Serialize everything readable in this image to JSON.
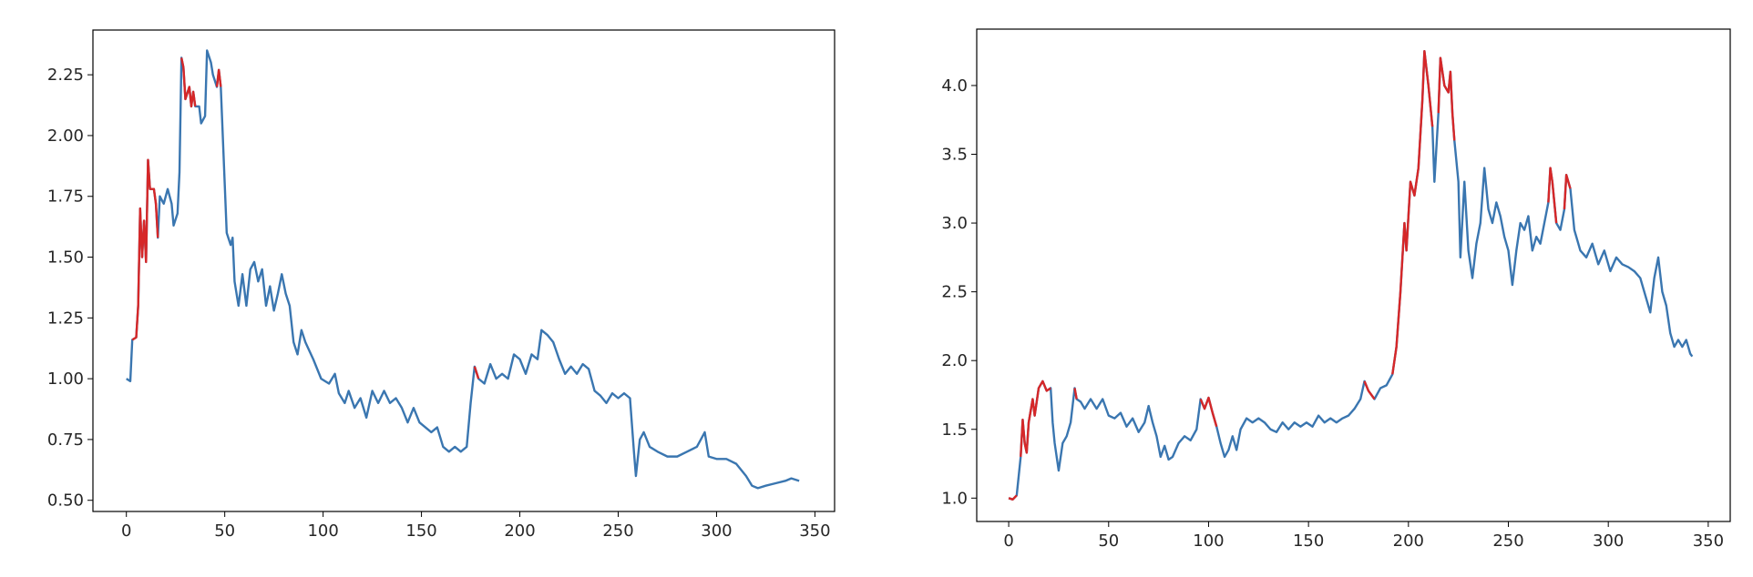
{
  "chart_data": [
    {
      "type": "line",
      "xlim": [
        -17,
        360
      ],
      "ylim": [
        0.454,
        2.434
      ],
      "xticks": [
        0,
        50,
        100,
        150,
        200,
        250,
        300,
        350
      ],
      "yticks": [
        {
          "value": 0.5,
          "label": "0.50"
        },
        {
          "value": 0.75,
          "label": "0.75"
        },
        {
          "value": 1.0,
          "label": "1.00"
        },
        {
          "value": 1.25,
          "label": "1.25"
        },
        {
          "value": 1.5,
          "label": "1.50"
        },
        {
          "value": 1.75,
          "label": "1.75"
        },
        {
          "value": 2.0,
          "label": "2.00"
        },
        {
          "value": 2.25,
          "label": "2.25"
        }
      ],
      "x": [
        0,
        2,
        3,
        5,
        6,
        7,
        8,
        9,
        10,
        11,
        12,
        14,
        15,
        16,
        17,
        19,
        21,
        23,
        24,
        26,
        27,
        28,
        29,
        30,
        32,
        33,
        34,
        35,
        37,
        38,
        40,
        41,
        43,
        44,
        46,
        47,
        48,
        50,
        51,
        53,
        54,
        55,
        57,
        59,
        61,
        63,
        65,
        67,
        69,
        71,
        73,
        75,
        77,
        79,
        81,
        83,
        85,
        87,
        89,
        91,
        95,
        99,
        103,
        106,
        108,
        111,
        113,
        116,
        119,
        122,
        125,
        128,
        131,
        134,
        137,
        140,
        143,
        146,
        149,
        152,
        155,
        158,
        161,
        164,
        167,
        170,
        173,
        175,
        177,
        179,
        182,
        185,
        188,
        191,
        194,
        197,
        200,
        203,
        206,
        209,
        211,
        214,
        217,
        220,
        223,
        226,
        229,
        232,
        235,
        238,
        241,
        244,
        247,
        250,
        253,
        256,
        258,
        259,
        261,
        263,
        266,
        270,
        275,
        280,
        285,
        290,
        294,
        296,
        300,
        305,
        310,
        315,
        318,
        321,
        325,
        330,
        335,
        338,
        342
      ],
      "series": [
        {
          "color": "#3a76b0",
          "values": [
            1.0,
            0.99,
            1.16,
            1.17,
            1.3,
            1.7,
            1.5,
            1.65,
            1.48,
            1.9,
            1.78,
            1.78,
            1.72,
            1.58,
            1.75,
            1.72,
            1.78,
            1.72,
            1.63,
            1.68,
            1.85,
            2.32,
            2.28,
            2.15,
            2.2,
            2.12,
            2.18,
            2.12,
            2.12,
            2.05,
            2.08,
            2.35,
            2.3,
            2.25,
            2.2,
            2.27,
            2.2,
            1.8,
            1.6,
            1.55,
            1.58,
            1.4,
            1.3,
            1.43,
            1.3,
            1.45,
            1.48,
            1.4,
            1.45,
            1.3,
            1.38,
            1.28,
            1.35,
            1.43,
            1.35,
            1.3,
            1.15,
            1.1,
            1.2,
            1.15,
            1.08,
            1.0,
            0.98,
            1.02,
            0.94,
            0.9,
            0.95,
            0.88,
            0.92,
            0.84,
            0.95,
            0.9,
            0.95,
            0.9,
            0.92,
            0.88,
            0.82,
            0.88,
            0.82,
            0.8,
            0.78,
            0.8,
            0.72,
            0.7,
            0.72,
            0.7,
            0.72,
            0.9,
            1.05,
            1.0,
            0.98,
            1.06,
            1.0,
            1.02,
            1.0,
            1.1,
            1.08,
            1.02,
            1.1,
            1.08,
            1.2,
            1.18,
            1.15,
            1.08,
            1.02,
            1.05,
            1.02,
            1.06,
            1.04,
            0.95,
            0.93,
            0.9,
            0.94,
            0.92,
            0.94,
            0.92,
            0.7,
            0.6,
            0.75,
            0.78,
            0.72,
            0.7,
            0.68,
            0.68,
            0.7,
            0.72,
            0.78,
            0.68,
            0.67,
            0.67,
            0.65,
            0.6,
            0.56,
            0.55,
            0.56,
            0.57,
            0.58,
            0.59,
            0.58
          ]
        },
        {
          "color": "#d62728",
          "x": [
            3,
            5,
            6,
            7,
            8,
            9,
            10,
            11,
            12,
            14,
            15,
            16,
            null,
            28,
            29,
            30,
            32,
            33,
            34,
            35,
            null,
            46,
            47,
            48,
            null,
            177,
            179
          ],
          "values": [
            1.16,
            1.17,
            1.3,
            1.7,
            1.5,
            1.65,
            1.48,
            1.9,
            1.78,
            1.78,
            1.72,
            1.58,
            null,
            2.32,
            2.28,
            2.15,
            2.2,
            2.12,
            2.18,
            2.12,
            null,
            2.2,
            2.27,
            2.2,
            null,
            1.05,
            1.0
          ]
        }
      ]
    },
    {
      "type": "line",
      "xlim": [
        -16,
        361
      ],
      "ylim": [
        0.83,
        4.41
      ],
      "xticks": [
        0,
        50,
        100,
        150,
        200,
        250,
        300,
        350
      ],
      "yticks": [
        {
          "value": 1.0,
          "label": "1.0"
        },
        {
          "value": 1.5,
          "label": "1.5"
        },
        {
          "value": 2.0,
          "label": "2.0"
        },
        {
          "value": 2.5,
          "label": "2.5"
        },
        {
          "value": 3.0,
          "label": "3.0"
        },
        {
          "value": 3.5,
          "label": "3.5"
        },
        {
          "value": 4.0,
          "label": "4.0"
        }
      ],
      "x": [
        0,
        2,
        4,
        6,
        7,
        8,
        9,
        10,
        12,
        13,
        15,
        17,
        19,
        21,
        22,
        23,
        25,
        27,
        29,
        31,
        33,
        34,
        36,
        38,
        41,
        44,
        47,
        50,
        53,
        56,
        59,
        62,
        65,
        68,
        70,
        72,
        74,
        76,
        78,
        80,
        82,
        85,
        88,
        91,
        94,
        96,
        98,
        100,
        102,
        104,
        106,
        108,
        110,
        112,
        114,
        116,
        119,
        122,
        125,
        128,
        131,
        134,
        137,
        140,
        143,
        146,
        149,
        152,
        155,
        158,
        161,
        164,
        167,
        170,
        173,
        176,
        178,
        180,
        183,
        186,
        189,
        192,
        194,
        196,
        198,
        199,
        201,
        203,
        205,
        207,
        208,
        210,
        212,
        213,
        215,
        216,
        218,
        220,
        221,
        222,
        223,
        225,
        226,
        228,
        230,
        232,
        234,
        236,
        238,
        240,
        242,
        244,
        246,
        248,
        250,
        252,
        254,
        256,
        258,
        260,
        262,
        264,
        266,
        268,
        270,
        271,
        272,
        274,
        276,
        278,
        279,
        281,
        283,
        286,
        289,
        292,
        295,
        298,
        301,
        304,
        307,
        310,
        313,
        316,
        319,
        321,
        323,
        325,
        327,
        329,
        331,
        333,
        335,
        337,
        339,
        341,
        342
      ],
      "series": [
        {
          "color": "#3a76b0",
          "values": [
            1.0,
            0.99,
            1.02,
            1.3,
            1.57,
            1.4,
            1.33,
            1.55,
            1.72,
            1.6,
            1.8,
            1.85,
            1.78,
            1.8,
            1.55,
            1.4,
            1.2,
            1.4,
            1.45,
            1.55,
            1.8,
            1.72,
            1.7,
            1.65,
            1.72,
            1.65,
            1.72,
            1.6,
            1.58,
            1.62,
            1.52,
            1.58,
            1.48,
            1.55,
            1.67,
            1.55,
            1.45,
            1.3,
            1.38,
            1.28,
            1.3,
            1.4,
            1.45,
            1.42,
            1.5,
            1.72,
            1.65,
            1.73,
            1.62,
            1.52,
            1.4,
            1.3,
            1.35,
            1.45,
            1.35,
            1.5,
            1.58,
            1.55,
            1.58,
            1.55,
            1.5,
            1.48,
            1.55,
            1.5,
            1.55,
            1.52,
            1.55,
            1.52,
            1.6,
            1.55,
            1.58,
            1.55,
            1.58,
            1.6,
            1.65,
            1.72,
            1.85,
            1.78,
            1.72,
            1.8,
            1.82,
            1.9,
            2.1,
            2.5,
            3.0,
            2.8,
            3.3,
            3.2,
            3.4,
            3.9,
            4.25,
            4.0,
            3.7,
            3.3,
            3.8,
            4.2,
            4.0,
            3.95,
            4.1,
            3.8,
            3.6,
            3.3,
            2.75,
            3.3,
            2.8,
            2.6,
            2.85,
            3.0,
            3.4,
            3.1,
            3.0,
            3.15,
            3.05,
            2.9,
            2.8,
            2.55,
            2.8,
            3.0,
            2.95,
            3.05,
            2.8,
            2.9,
            2.85,
            3.0,
            3.15,
            3.4,
            3.3,
            3.0,
            2.95,
            3.1,
            3.35,
            3.25,
            2.95,
            2.8,
            2.75,
            2.85,
            2.7,
            2.8,
            2.65,
            2.75,
            2.7,
            2.68,
            2.65,
            2.6,
            2.45,
            2.35,
            2.6,
            2.75,
            2.5,
            2.4,
            2.2,
            2.1,
            2.15,
            2.1,
            2.15,
            2.05,
            2.03
          ]
        },
        {
          "color": "#d62728",
          "x": [
            0,
            2,
            4,
            null,
            6,
            7,
            8,
            9,
            10,
            12,
            13,
            15,
            17,
            19,
            21,
            null,
            33,
            34,
            null,
            96,
            98,
            100,
            102,
            104,
            null,
            178,
            180,
            183,
            null,
            192,
            194,
            196,
            198,
            199,
            201,
            203,
            205,
            207,
            208,
            210,
            212,
            null,
            215,
            216,
            218,
            220,
            221,
            222,
            223,
            null,
            270,
            271,
            272,
            274,
            null,
            278,
            279,
            281
          ],
          "values": [
            1.0,
            0.99,
            1.02,
            null,
            1.3,
            1.57,
            1.4,
            1.33,
            1.55,
            1.72,
            1.6,
            1.8,
            1.85,
            1.78,
            1.8,
            null,
            1.8,
            1.72,
            null,
            1.72,
            1.65,
            1.73,
            1.62,
            1.52,
            null,
            1.85,
            1.78,
            1.72,
            null,
            1.9,
            2.1,
            2.5,
            3.0,
            2.8,
            3.3,
            3.2,
            3.4,
            3.9,
            4.25,
            4.0,
            3.7,
            null,
            3.8,
            4.2,
            4.0,
            3.95,
            4.1,
            3.8,
            3.6,
            null,
            3.15,
            3.4,
            3.3,
            3.0,
            null,
            3.1,
            3.35,
            3.25
          ]
        }
      ]
    }
  ]
}
